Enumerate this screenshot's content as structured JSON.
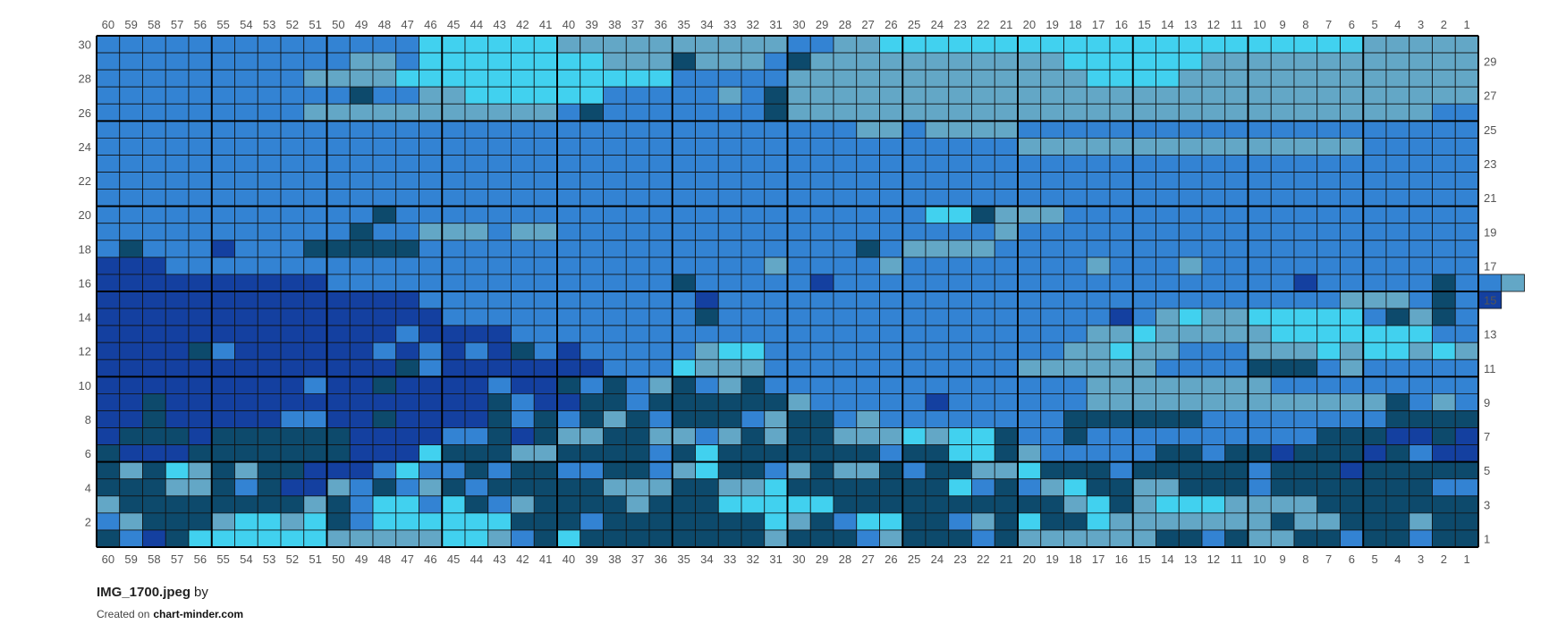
{
  "pattern": {
    "columns": [
      60,
      59,
      58,
      57,
      56,
      55,
      54,
      53,
      52,
      51,
      50,
      49,
      48,
      47,
      46,
      45,
      44,
      43,
      42,
      41,
      40,
      39,
      38,
      37,
      36,
      35,
      34,
      33,
      32,
      31,
      30,
      29,
      28,
      27,
      26,
      25,
      24,
      23,
      22,
      21,
      20,
      19,
      18,
      17,
      16,
      15,
      14,
      13,
      12,
      11,
      10,
      9,
      8,
      7,
      6,
      5,
      4,
      3,
      2,
      1
    ],
    "left_labels": [
      30,
      28,
      26,
      24,
      22,
      20,
      18,
      16,
      14,
      12,
      10,
      8,
      6,
      4,
      2
    ],
    "right_labels": [
      29,
      27,
      25,
      23,
      21,
      19,
      17,
      15,
      13,
      11,
      9,
      7,
      5,
      3,
      1
    ],
    "palette": {
      "A": "#3383d3",
      "B": "#63a7c6",
      "C": "#41d1ef",
      "D": "#0d4a6c",
      "E": "#1440a0"
    },
    "rows": [
      "AAAAAAAAAAAAAACCCCCCBBBBBBBBBBAABBCCCCCCCCCCCCCCCCCCCCCBBBBB",
      "AAAAAAAAAAABBACCCCCCCCBBBDBBBADBBBBBBBBBBBCCCCCCBBBBBBBBBBBB",
      "AAAAAAAAABBBBCCCCCCCCCCCCAAAAABBBBBBBBBBBBBCCCCBBBBBBBBBBBBB",
      "AAAAAAAAAAADAABBCCCCCCAAAAABADBBBBBBBBBBBBBBBBBBBBBBBBBBBBBB",
      "AAAAAAAAABBBBBBBBBBBADAAAAAAADBBBBBBBBBBBBBBBBBBBBBBBBBBBBAA",
      "AAAAAAAAAAAAAAAAAAAAAAAAAAAAAAAAABBABBBBAAAAAAAAAAAAAAAAAAAA",
      "AAAAAAAAAAAAAAAAAAAAAAAAAAAAAAAAAAAAAAAABBBBBBBBBBBBBBBAAAAA",
      "AAAAAAAAAAAAAAAAAAAAAAAAAAAAAAAAAAAAAAAAAAAAAAAAAAAAAAAAAAAA",
      "AAAAAAAAAAAAAAAAAAAAAAAAAAAAAAAAAAAAAAAAAAAAAAAAAAAAAAAAAAAA",
      "AAAAAAAAAAAAAAAAAAAAAAAAAAAAAAAAAAAAAAAAAAAAAAAAAAAAAAAAAAAA",
      "AAAAAAAAAAAADAAAAAAAAAAAAAAAAAAAAAAACCDBBBAAAAAAAAAAAAAAAAAA",
      "AAAAAAAAAAADAABBBABBAAAAAAAAAAAAAAAAAAABAAAAAAAAAAAAAAAAAAAA",
      "ADAAAEAAADDDDDAAAAAAAAAAAAAAAAAAADABBBBAAAAAAAAAAAAAAAAAAAAA",
      "EEEAAAAAAAAAAAAAAAAAAAAAAAAAABAAAABAAAAAAAABAAABAAAAAAAAAAAA",
      "EEEEEEEEEEAAAAAAAAAAAAAAADAAAAAEAAAAAAAAAAAAAAAAAAAAEAAAAADAAB",
      "EEEEEEEEEEEEEEAAAAAAAAAAAAEAAAAAAAAAAAAAAAAAAAAAAAAAAABBBADAE",
      "EEEEEEEEEEEEEEEAAAAAAAAAAADAAAAAAAAAAAAAAAAAEABCBBCCCCCADBDA",
      "EEEEEEEEEEEEEAEEEEAAAAAAAAAAAAAAAAAAAAAAAAABBCBBBBBCCCCCCCAA",
      "EEEEDAEEEEEEAEAEAEDAEAAAAABCCAAAAAAAAAAAAABBCBBAAABBBCBCCBCB",
      "EEEEEEEEEEEEEDAEEEEEEEAAACBBBAAAAAAAAAAABBBBBBAAAADDDABAAAAA",
      "EEEEEEEEEAEEDEEEEAEEDADABDABDAAAAAAAAAAAAAABBBBBBBBAAAAAAAAA",
      "EEDEEEEEEEEEEEEEEDAEEDDADDDDDDBAAAAAEAAAAAABBBBBBBBBBBBBDABA",
      "EEDEEEEEAAEEDEEEEDADADBDADDDABDDABAAAAAAAADDDDDDAAAAAAAADDDD",
      "EDDDEDDDDDDEEEEAADEDBBDDBBABDBDDBBBCBCCDAADAAAAAAAAAADDDEEDE",
      "DEEEDDDDDDDEEECDDDBBDDDDADCDDDDDDDADDCCDBAAAAADDADDEDDDEDAEE",
      "DBDCBDBDDEEEACAADADDAADDABCDDABDBBDADDBBCDDDADDDDDADDDEDDDDD",
      "DDDBBDADEEBADABDADDDDDBBBDDBBCDDDDDDDCADABCDDBBDDDADDDDDDDAA",
      "BDDDDDDDDBDACCACDABDDDDBDDDCCCCCDDDDDDDDDDBCDBCCCBBBBDDDDDDD",
      "ABDDDBCCBCDACCCCCCDDDADDDDDDDCBDACCDDABDCDDCBBBBBBBDBBDDDBDD",
      "DAEDCCCCCCBBBBBCCBADCDDDDDDDDBDDDABDDDADBBBBBBDDADBBDDADDADD"
    ],
    "file_name": "IMG_1700.jpeg",
    "by": "by",
    "created_on": "Created on",
    "site": "chart-minder.com"
  }
}
